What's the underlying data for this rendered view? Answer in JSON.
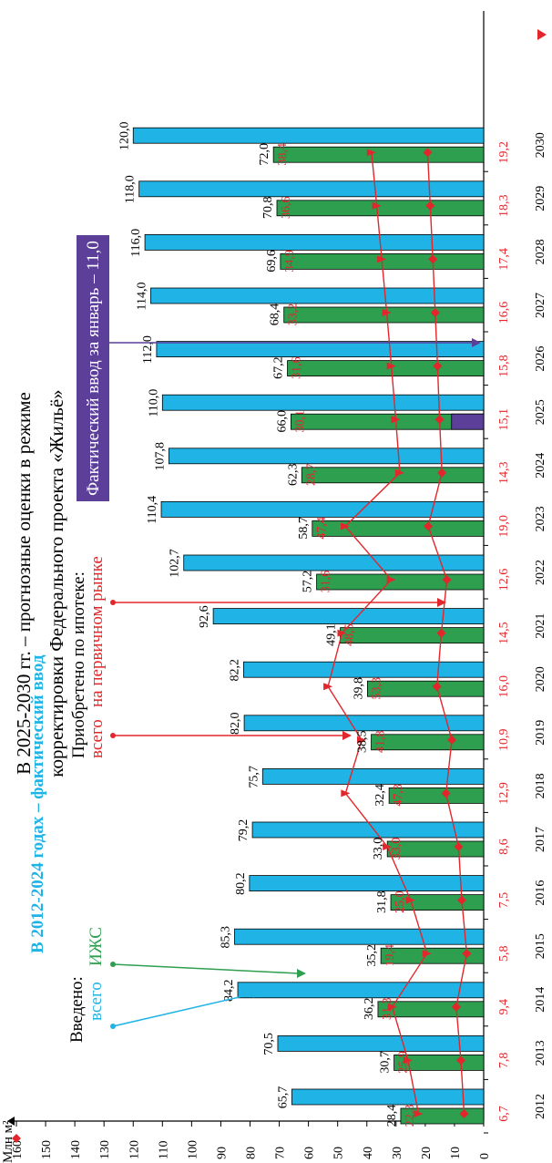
{
  "chart_data": {
    "type": "bar",
    "title": "В 2025-2030 гг. – прогнозные оценки в режиме корректировки Федерального проекта «Жильё»",
    "title_line1": "В 2025-2030 гг. – прогнозные оценки в режиме",
    "title_line2": "корректировки Федерального проекта «Жильё»",
    "subtitle": "В 2012-2024 годах – фактический ввод",
    "ylabel": "Млн м²",
    "ylim": [
      0,
      160
    ],
    "yticks": [
      "0",
      "10",
      "20",
      "30",
      "40",
      "50",
      "60",
      "70",
      "80",
      "90",
      "100",
      "110",
      "120",
      "130",
      "140",
      "150",
      "160"
    ],
    "categories": [
      "2012",
      "2013",
      "2014",
      "2015",
      "2016",
      "2017",
      "2018",
      "2019",
      "2020",
      "2021",
      "2022",
      "2023",
      "2024",
      "2025",
      "2026",
      "2027",
      "2028",
      "2029",
      "2030"
    ],
    "series": [
      {
        "name": "всего",
        "kind": "bar",
        "color": "#1fb3e6",
        "values": [
          65.7,
          70.5,
          84.2,
          85.3,
          80.2,
          79.2,
          75.7,
          82.0,
          82.2,
          92.6,
          102.7,
          110.4,
          107.8,
          110.0,
          112.0,
          114.0,
          116.0,
          118.0,
          120.0
        ],
        "labels": [
          "65,7",
          "70,5",
          "84,2",
          "85,3",
          "80,2",
          "79,2",
          "75,7",
          "82,0",
          "82,2",
          "92,6",
          "102,7",
          "110,4",
          "107,8",
          "110,0",
          "112,0",
          "114,0",
          "116,0",
          "118,0",
          "120,0"
        ]
      },
      {
        "name": "ИЖС",
        "kind": "bar",
        "color": "#2e9e4f",
        "values": [
          28.4,
          30.7,
          36.2,
          35.2,
          31.8,
          33.0,
          32.4,
          38.5,
          39.8,
          49.1,
          57.2,
          58.7,
          62.3,
          66.0,
          67.2,
          68.4,
          69.6,
          70.8,
          72.0
        ],
        "labels": [
          "28,4",
          "30,7",
          "36,2",
          "35,2",
          "31,8",
          "33,0",
          "32,4",
          "38,5",
          "39,8",
          "49,1",
          "57,2",
          "58,7",
          "62,3",
          "66,0",
          "67,2",
          "68,4",
          "69,6",
          "70,8",
          "72,0"
        ]
      },
      {
        "name": "всего (ипотека)",
        "kind": "line",
        "marker": "triangle",
        "color": "#e3262b",
        "values": [
          22.3,
          25.9,
          31.3,
          19.4,
          25.0,
          33.0,
          47.3,
          41.8,
          53.3,
          48.5,
          31.6,
          47.4,
          28.7,
          30.1,
          31.6,
          33.2,
          34.9,
          36.6,
          38.4
        ],
        "labels": [
          "22,3",
          "25,9",
          "31,3",
          "19,4",
          "25,0",
          "33,0",
          "47,3",
          "41,8",
          "53,3",
          "48,5",
          "31,6",
          "47,4",
          "28,7",
          "30,1",
          "31,6",
          "33,2",
          "34,9",
          "36,6",
          "38,4"
        ]
      },
      {
        "name": "на первичном рынке",
        "kind": "line",
        "marker": "diamond",
        "color": "#e3262b",
        "values": [
          6.7,
          7.8,
          9.4,
          5.8,
          7.5,
          8.6,
          12.9,
          10.9,
          16.0,
          14.5,
          12.6,
          19.0,
          14.3,
          15.1,
          15.8,
          16.6,
          17.4,
          18.3,
          19.2
        ],
        "labels": [
          "6,7",
          "7,8",
          "9,4",
          "5,8",
          "7,5",
          "8,6",
          "12,9",
          "10,9",
          "16,0",
          "14,5",
          "12,6",
          "19,0",
          "14,3",
          "15,1",
          "15,8",
          "16,6",
          "17,4",
          "18,3",
          "19,2"
        ]
      }
    ],
    "extra_bar": {
      "category": "2025",
      "value": 11.0,
      "color": "#5b3f98"
    },
    "annotations": {
      "vvedeno": "Введено:",
      "vsego_blue": "всего",
      "izhs": "ИЖС",
      "mortgage_title": "Приобретено по ипотеке:",
      "mortgage_total": "всего",
      "mortgage_primary": "на первичном рынке",
      "fact_jan": "Фактический ввод за январь – 11,0"
    }
  }
}
